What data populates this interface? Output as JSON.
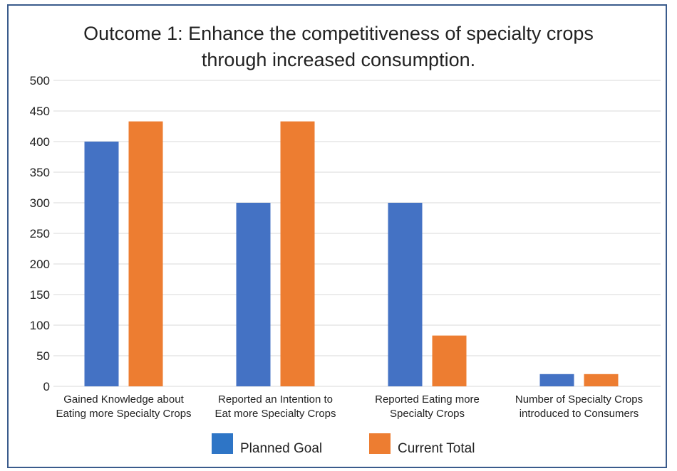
{
  "chart_data": {
    "type": "bar",
    "title_lines": [
      "Outcome 1: Enhance the competitiveness of specialty crops",
      "through increased consumption."
    ],
    "categories": [
      [
        "Gained Knowledge about",
        "Eating more Specialty Crops"
      ],
      [
        "Reported an Intention to",
        "Eat more Specialty Crops"
      ],
      [
        "Reported Eating more",
        "Specialty Crops"
      ],
      [
        "Number of Specialty Crops",
        "introduced to Consumers"
      ]
    ],
    "series": [
      {
        "name": "Planned Goal",
        "color": "#4472c4",
        "values": [
          400,
          300,
          300,
          20
        ]
      },
      {
        "name": "Current Total",
        "color": "#ed7d31",
        "values": [
          433,
          433,
          83,
          20
        ]
      }
    ],
    "ylim": [
      0,
      500
    ],
    "yticks": [
      "0",
      "50",
      "100",
      "150",
      "200",
      "250",
      "300",
      "350",
      "400",
      "450",
      "500"
    ],
    "grid": true,
    "legend_position": "bottom",
    "legend_colors": [
      "#2e75c6",
      "#ed7d31"
    ]
  }
}
